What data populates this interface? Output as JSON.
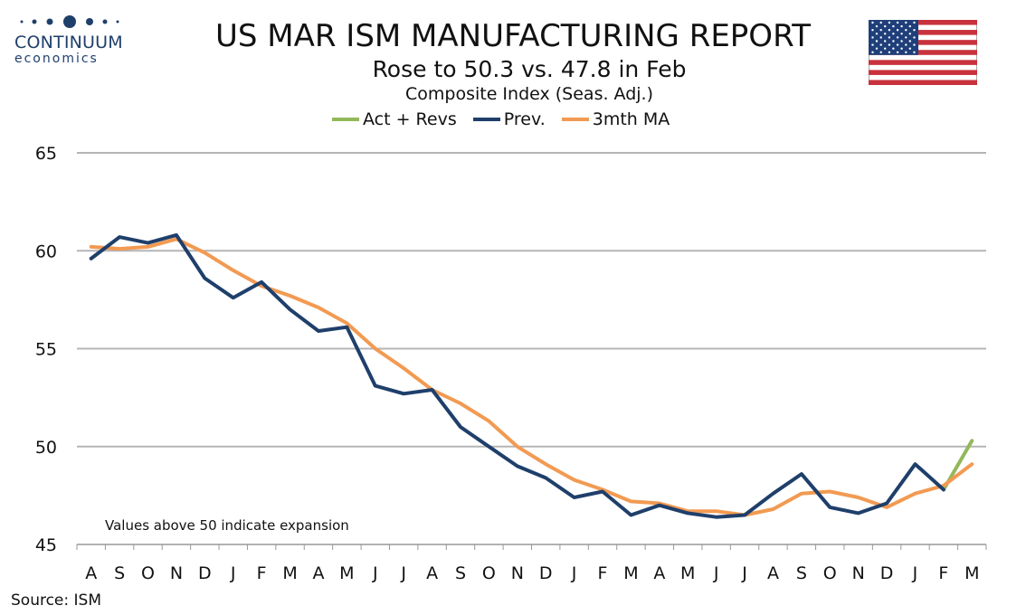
{
  "header": {
    "title": "US MAR ISM MANUFACTURING REPORT",
    "subtitle": "Rose to 50.3 vs. 47.8 in Feb",
    "subtitle2": "Composite Index (Seas. Adj.)"
  },
  "logo": {
    "word1": "CONTINUUM",
    "word2": "economics",
    "color": "#1f3f6b"
  },
  "flag": {
    "name": "us-flag-icon"
  },
  "legend": [
    {
      "label": "Act + Revs",
      "color": "#92b85a"
    },
    {
      "label": "Prev.",
      "color": "#1f3f6b"
    },
    {
      "label": "3mth MA",
      "color": "#f29a52"
    }
  ],
  "annotation": "Values above 50 indicate expansion",
  "source": "Source: ISM",
  "chart_data": {
    "type": "line",
    "categories": [
      "A",
      "S",
      "O",
      "N",
      "D",
      "J",
      "F",
      "M",
      "A",
      "M",
      "J",
      "J",
      "A",
      "S",
      "O",
      "N",
      "D",
      "J",
      "F",
      "M",
      "A",
      "M",
      "J",
      "J",
      "A",
      "S",
      "O",
      "N",
      "D",
      "J",
      "F",
      "M"
    ],
    "ylim": [
      45,
      65
    ],
    "yticks": [
      45,
      50,
      55,
      60,
      65
    ],
    "grid": true,
    "legend_position": "top",
    "series": [
      {
        "name": "Act + Revs",
        "color": "#92b85a",
        "values": [
          null,
          null,
          null,
          null,
          null,
          null,
          null,
          null,
          null,
          null,
          null,
          null,
          null,
          null,
          null,
          null,
          null,
          null,
          null,
          null,
          null,
          null,
          null,
          null,
          null,
          null,
          null,
          null,
          null,
          null,
          47.8,
          50.3
        ]
      },
      {
        "name": "Prev.",
        "color": "#1f3f6b",
        "values": [
          59.6,
          60.7,
          60.4,
          60.8,
          58.6,
          57.6,
          58.4,
          57.0,
          55.9,
          56.1,
          53.1,
          52.7,
          52.9,
          51.0,
          50.0,
          49.0,
          48.4,
          47.4,
          47.7,
          46.5,
          47.0,
          46.6,
          46.4,
          46.5,
          47.6,
          48.6,
          46.9,
          46.6,
          47.1,
          49.1,
          47.8,
          null
        ]
      },
      {
        "name": "3mth MA",
        "color": "#f29a52",
        "values": [
          60.2,
          60.1,
          60.2,
          60.6,
          59.9,
          59.0,
          58.2,
          57.7,
          57.1,
          56.3,
          55.0,
          54.0,
          52.9,
          52.2,
          51.3,
          50.0,
          49.1,
          48.3,
          47.8,
          47.2,
          47.1,
          46.7,
          46.7,
          46.5,
          46.8,
          47.6,
          47.7,
          47.4,
          46.9,
          47.6,
          48.0,
          49.1
        ]
      }
    ]
  }
}
